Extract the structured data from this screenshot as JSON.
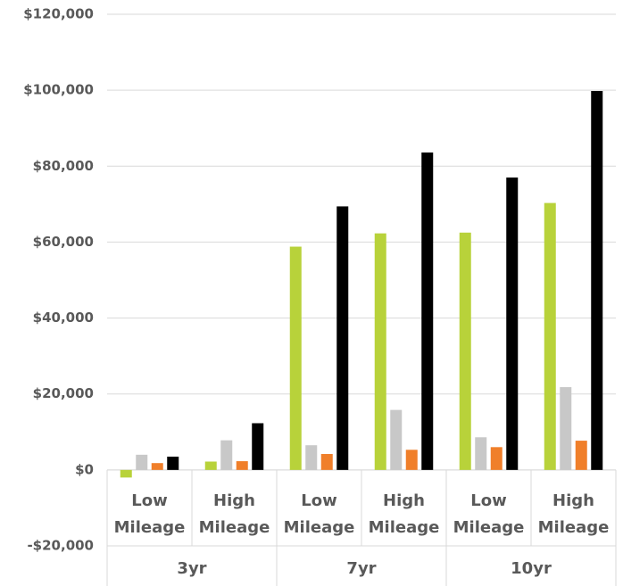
{
  "chart_data": {
    "type": "bar",
    "categories": [
      "Low Mileage",
      "High Mileage",
      "Low Mileage",
      "High Mileage",
      "Low Mileage",
      "High Mileage"
    ],
    "groups": [
      "3yr",
      "7yr",
      "10yr"
    ],
    "series": [
      {
        "color": "#b8d23a",
        "values": [
          -2000,
          2200,
          58800,
          62300,
          62500,
          70300
        ]
      },
      {
        "color": "#c8c8c8",
        "values": [
          4000,
          7800,
          6500,
          15800,
          8600,
          21800
        ]
      },
      {
        "color": "#f07f2a",
        "values": [
          1800,
          2300,
          4200,
          5300,
          6000,
          7700
        ]
      },
      {
        "color": "#000000",
        "values": [
          3500,
          12300,
          69400,
          83600,
          77000,
          99800
        ]
      }
    ],
    "ylim": [
      -20000,
      120000
    ],
    "yticks": [
      {
        "value": -20000,
        "label": "-$20,000"
      },
      {
        "value": 0,
        "label": "$0"
      },
      {
        "value": 20000,
        "label": "$20,000"
      },
      {
        "value": 40000,
        "label": "$40,000"
      },
      {
        "value": 60000,
        "label": "$60,000"
      },
      {
        "value": 80000,
        "label": "$80,000"
      },
      {
        "value": 100000,
        "label": "$100,000"
      },
      {
        "value": 120000,
        "label": "$120,000"
      }
    ],
    "grid": true
  }
}
